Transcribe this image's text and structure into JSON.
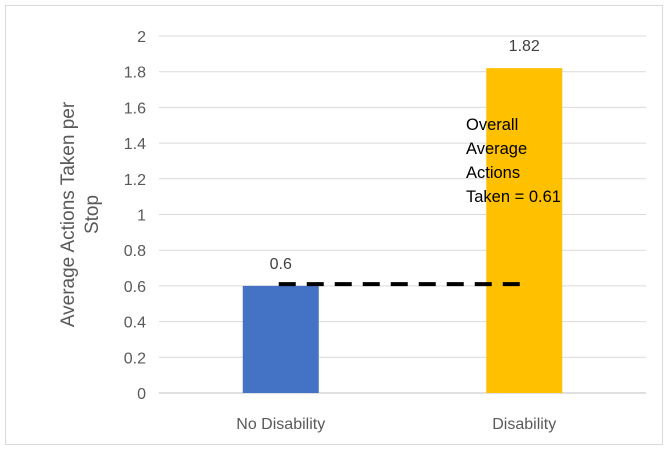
{
  "chart_data": {
    "type": "bar",
    "categories": [
      "No Disability",
      "Disability"
    ],
    "values": [
      0.6,
      1.82
    ],
    "data_labels": [
      "0.6",
      "1.82"
    ],
    "colors": [
      "#4472c4",
      "#ffc000"
    ],
    "title": "",
    "xlabel": "",
    "ylabel_lines": [
      "Average Actions Taken per",
      "Stop"
    ],
    "ylim": [
      0,
      2
    ],
    "yticks": [
      "0",
      "0.2",
      "0.4",
      "0.6",
      "0.8",
      "1",
      "1.2",
      "1.4",
      "1.6",
      "1.8",
      "2"
    ],
    "grid": true,
    "reference_line": {
      "value": 0.61,
      "style": "dashed",
      "color": "#000000",
      "annotation_lines": [
        "Overall",
        "Average",
        "Actions",
        "Taken = 0.61"
      ]
    }
  }
}
